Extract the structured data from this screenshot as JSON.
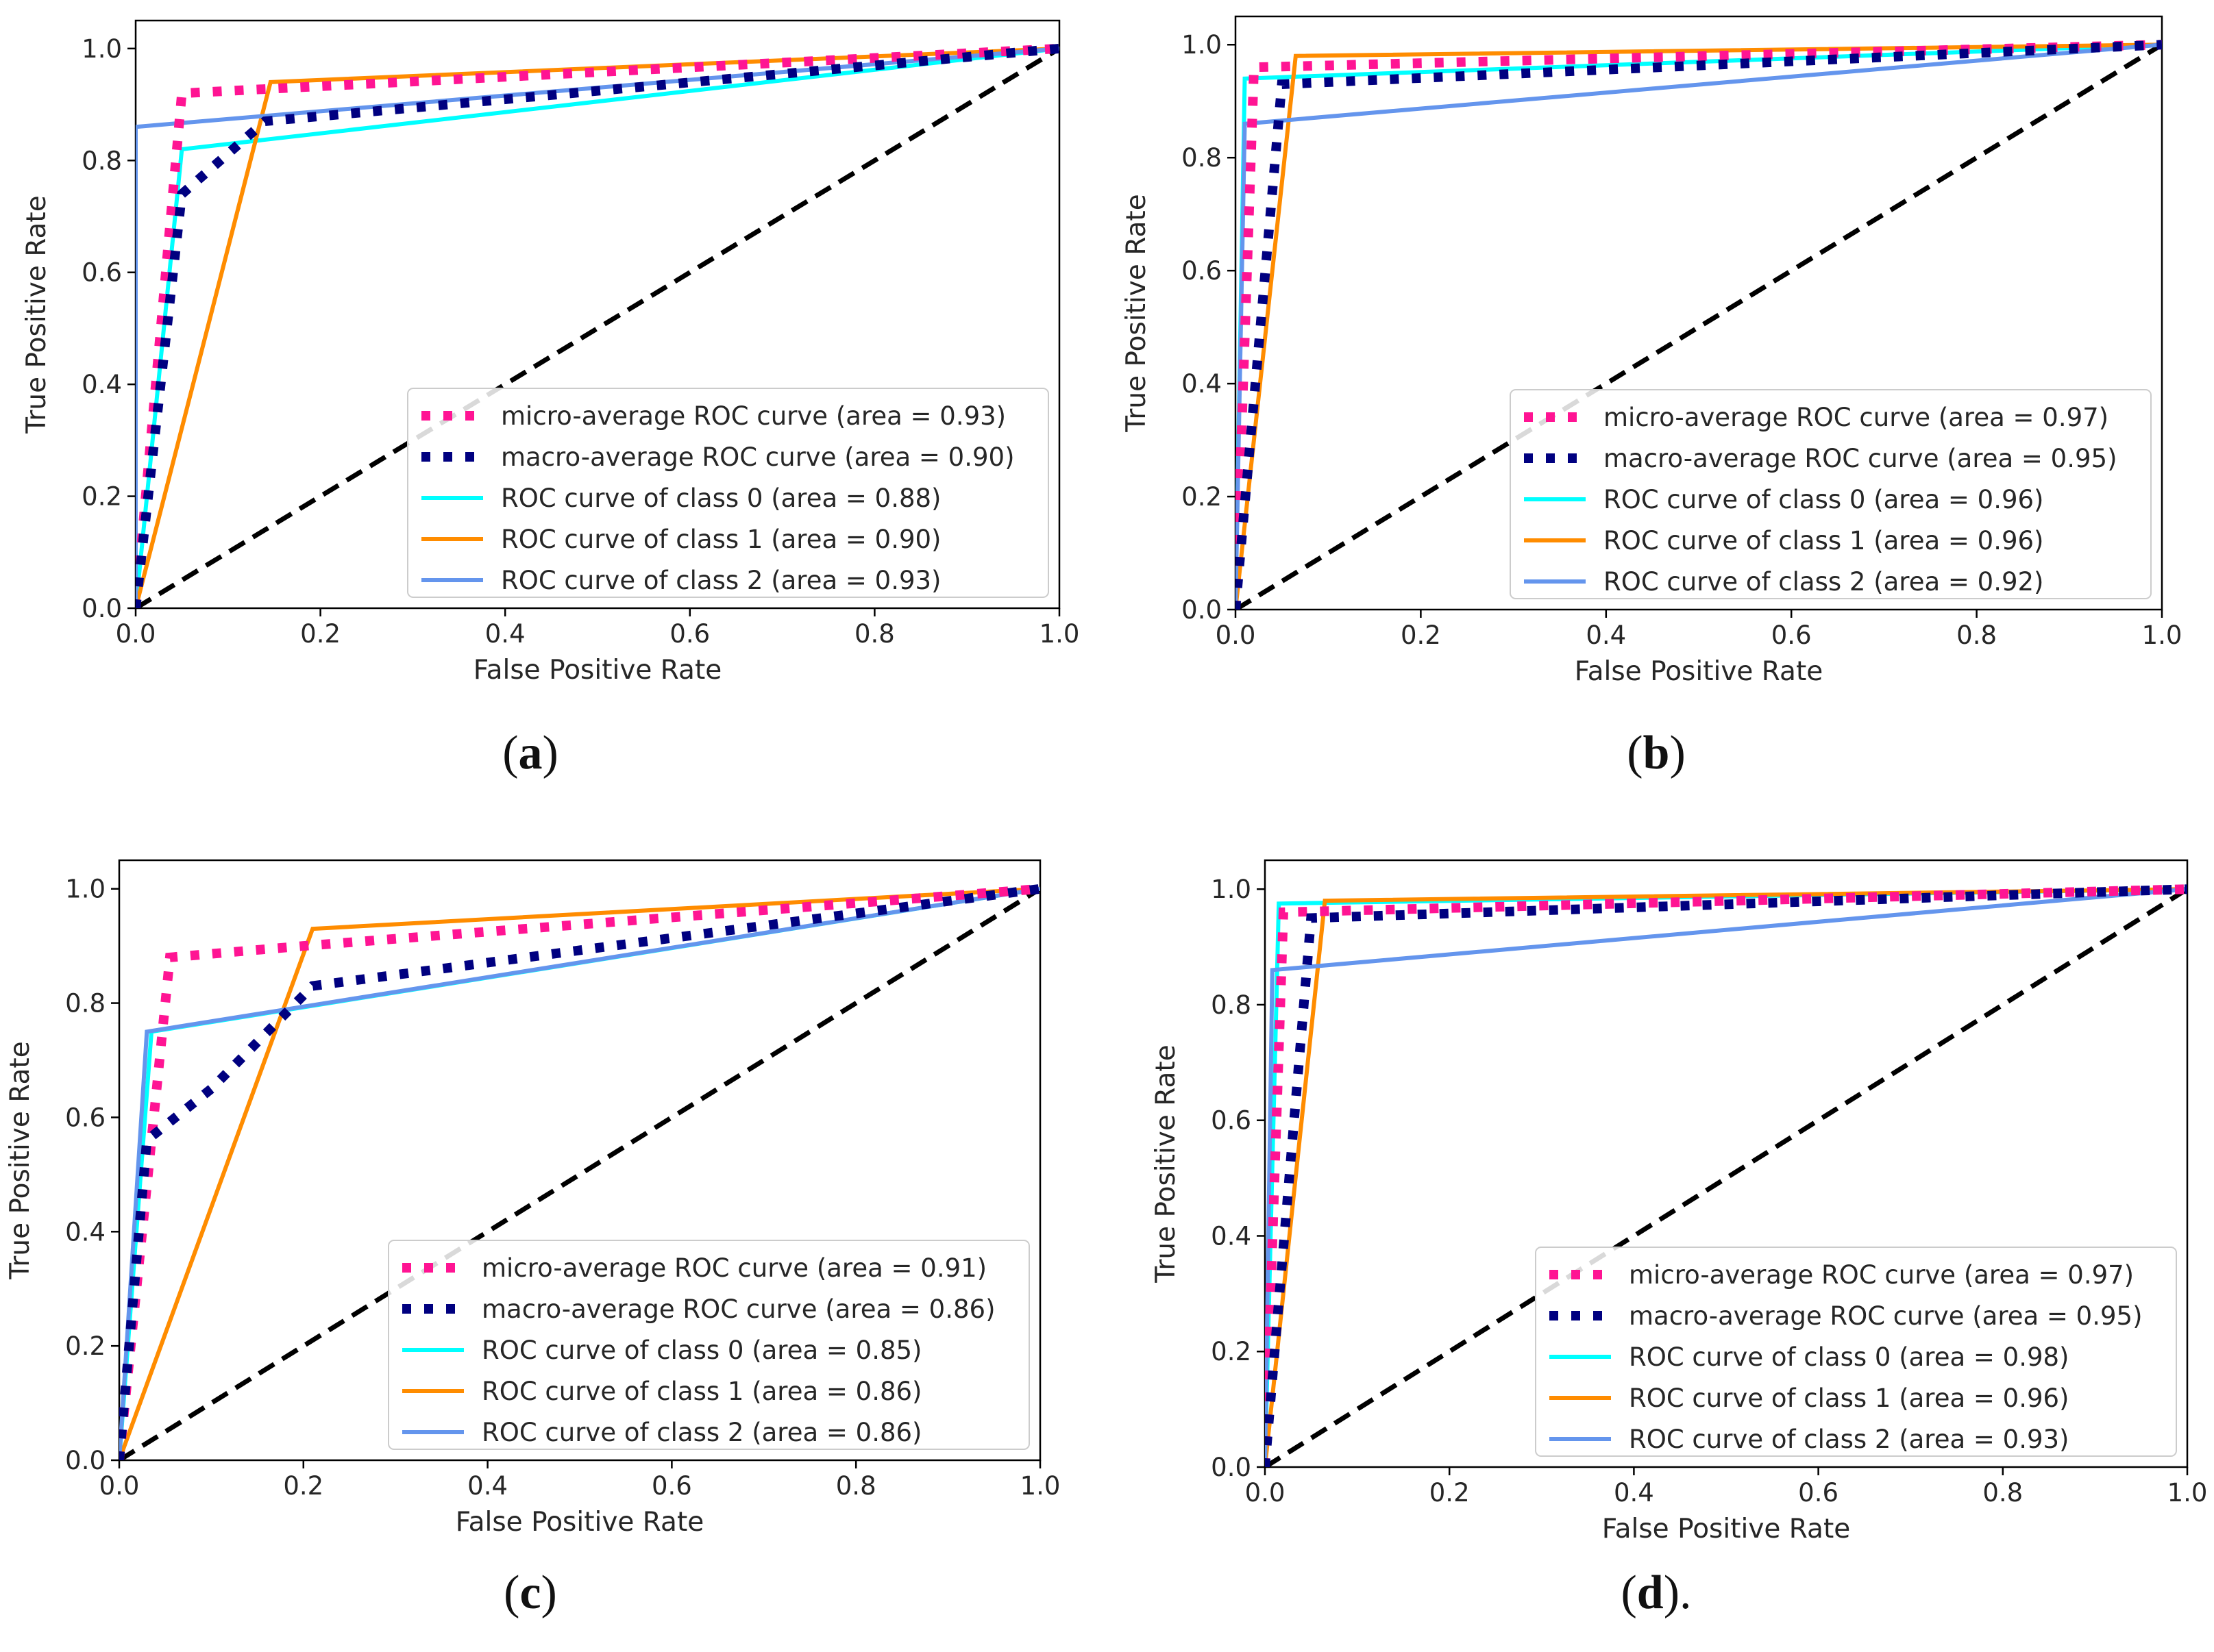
{
  "figure_caption_labels": {
    "a": {
      "open": "(",
      "letter": "a",
      "close": ")"
    },
    "b": {
      "open": "(",
      "letter": "b",
      "close": ")"
    },
    "c": {
      "open": "(",
      "letter": "c",
      "close": ")"
    },
    "d": {
      "open": "(",
      "letter": "d",
      "close": ")."
    }
  },
  "colors": {
    "micro": "#ff1493",
    "macro": "#000080",
    "class0": "#00ffff",
    "class1": "#ff8c00",
    "class2": "#6495ed",
    "diagonal": "#000000",
    "axis": "#000000",
    "text": "#262626"
  },
  "chart_data": [
    {
      "id": "a",
      "type": "line",
      "xlabel": "False Positive Rate",
      "ylabel": "True Positive Rate",
      "xlim": [
        0.0,
        1.0
      ],
      "ylim": [
        0.0,
        1.05
      ],
      "xticks": [
        "0.0",
        "0.2",
        "0.4",
        "0.6",
        "0.8",
        "1.0"
      ],
      "yticks": [
        "0.0",
        "0.2",
        "0.4",
        "0.6",
        "0.8",
        "1.0"
      ],
      "legend_position": "lower-right",
      "series": [
        {
          "key": "micro",
          "name": "micro-average ROC curve (area = 0.93)",
          "style": "dotted",
          "x": [
            0,
            0.05,
            1
          ],
          "y": [
            0,
            0.92,
            1
          ]
        },
        {
          "key": "macro",
          "name": "macro-average ROC curve (area = 0.90)",
          "style": "dotted",
          "x": [
            0,
            0.05,
            0.14,
            1
          ],
          "y": [
            0,
            0.74,
            0.87,
            1
          ]
        },
        {
          "key": "class0",
          "name": "ROC curve of class 0 (area = 0.88)",
          "style": "solid",
          "x": [
            0,
            0.05,
            1
          ],
          "y": [
            0,
            0.82,
            1
          ]
        },
        {
          "key": "class1",
          "name": "ROC curve of class 1 (area = 0.90)",
          "style": "solid",
          "x": [
            0,
            0.146,
            1
          ],
          "y": [
            0,
            0.94,
            1
          ]
        },
        {
          "key": "class2",
          "name": "ROC curve of class 2 (area = 0.93)",
          "style": "solid",
          "x": [
            0,
            0,
            1
          ],
          "y": [
            0,
            0.86,
            1
          ]
        }
      ]
    },
    {
      "id": "b",
      "type": "line",
      "xlabel": "False Positive Rate",
      "ylabel": "True Positive Rate",
      "xlim": [
        0.0,
        1.0
      ],
      "ylim": [
        0.0,
        1.05
      ],
      "xticks": [
        "0.0",
        "0.2",
        "0.4",
        "0.6",
        "0.8",
        "1.0"
      ],
      "yticks": [
        "0.0",
        "0.2",
        "0.4",
        "0.6",
        "0.8",
        "1.0"
      ],
      "legend_position": "lower-right",
      "series": [
        {
          "key": "micro",
          "name": "micro-average ROC curve (area = 0.97)",
          "style": "dotted",
          "x": [
            0,
            0.02,
            1
          ],
          "y": [
            0,
            0.96,
            1
          ]
        },
        {
          "key": "macro",
          "name": "macro-average ROC curve (area = 0.95)",
          "style": "dotted",
          "x": [
            0,
            0.05,
            1
          ],
          "y": [
            0,
            0.93,
            1
          ]
        },
        {
          "key": "class0",
          "name": "ROC curve of class 0 (area = 0.96)",
          "style": "solid",
          "x": [
            0,
            0.01,
            1
          ],
          "y": [
            0,
            0.94,
            1
          ]
        },
        {
          "key": "class1",
          "name": "ROC curve of class 1 (area = 0.96)",
          "style": "solid",
          "x": [
            0,
            0.065,
            1
          ],
          "y": [
            0,
            0.98,
            1
          ]
        },
        {
          "key": "class2",
          "name": "ROC curve of class 2 (area = 0.92)",
          "style": "solid",
          "x": [
            0,
            0.01,
            1
          ],
          "y": [
            0,
            0.86,
            1
          ]
        }
      ]
    },
    {
      "id": "c",
      "type": "line",
      "xlabel": "False Positive Rate",
      "ylabel": "True Positive Rate",
      "xlim": [
        0.0,
        1.0
      ],
      "ylim": [
        0.0,
        1.05
      ],
      "xticks": [
        "0.0",
        "0.2",
        "0.4",
        "0.6",
        "0.8",
        "1.0"
      ],
      "yticks": [
        "0.0",
        "0.2",
        "0.4",
        "0.6",
        "0.8",
        "1.0"
      ],
      "legend_position": "lower-right",
      "series": [
        {
          "key": "micro",
          "name": "micro-average ROC curve (area = 0.91)",
          "style": "dotted",
          "x": [
            0,
            0.055,
            0.2,
            1
          ],
          "y": [
            0,
            0.88,
            0.9,
            1
          ]
        },
        {
          "key": "macro",
          "name": "macro-average ROC curve (area = 0.86)",
          "style": "dotted",
          "x": [
            0,
            0.03,
            0.1,
            0.21,
            1
          ],
          "y": [
            0,
            0.56,
            0.65,
            0.83,
            1
          ]
        },
        {
          "key": "class0",
          "name": "ROC curve of class 0 (area = 0.85)",
          "style": "solid",
          "x": [
            0,
            0.035,
            1
          ],
          "y": [
            0,
            0.75,
            1
          ]
        },
        {
          "key": "class1",
          "name": "ROC curve of class 1 (area = 0.86)",
          "style": "solid",
          "x": [
            0,
            0.21,
            1
          ],
          "y": [
            0,
            0.93,
            1
          ]
        },
        {
          "key": "class2",
          "name": "ROC curve of class 2 (area = 0.86)",
          "style": "solid",
          "x": [
            0,
            0.03,
            1
          ],
          "y": [
            0,
            0.75,
            1
          ]
        }
      ]
    },
    {
      "id": "d",
      "type": "line",
      "xlabel": "False Positive Rate",
      "ylabel": "True Positive Rate",
      "xlim": [
        0.0,
        1.0
      ],
      "ylim": [
        0.0,
        1.05
      ],
      "xticks": [
        "0.0",
        "0.2",
        "0.4",
        "0.6",
        "0.8",
        "1.0"
      ],
      "yticks": [
        "0.0",
        "0.2",
        "0.4",
        "0.6",
        "0.8",
        "1.0"
      ],
      "legend_position": "lower-right",
      "series": [
        {
          "key": "micro",
          "name": "micro-average ROC curve (area = 0.97)",
          "style": "dotted",
          "x": [
            0,
            0.02,
            1
          ],
          "y": [
            0,
            0.96,
            1
          ]
        },
        {
          "key": "macro",
          "name": "macro-average ROC curve (area = 0.95)",
          "style": "dotted",
          "x": [
            0,
            0.05,
            1
          ],
          "y": [
            0,
            0.95,
            1
          ]
        },
        {
          "key": "class0",
          "name": "ROC curve of class 0 (area = 0.98)",
          "style": "solid",
          "x": [
            0,
            0.015,
            1
          ],
          "y": [
            0,
            0.975,
            1
          ]
        },
        {
          "key": "class1",
          "name": "ROC curve of class 1 (area = 0.96)",
          "style": "solid",
          "x": [
            0,
            0.065,
            1
          ],
          "y": [
            0,
            0.98,
            1
          ]
        },
        {
          "key": "class2",
          "name": "ROC curve of class 2 (area = 0.93)",
          "style": "solid",
          "x": [
            0,
            0.008,
            1
          ],
          "y": [
            0,
            0.86,
            1
          ]
        }
      ]
    }
  ]
}
